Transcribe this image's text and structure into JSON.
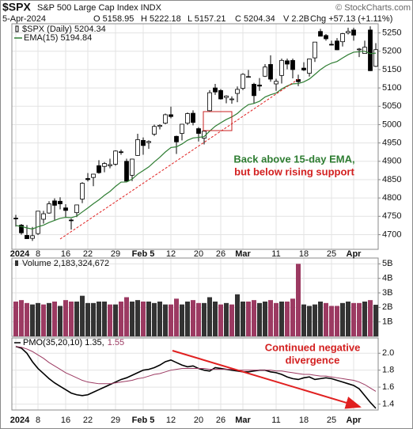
{
  "chart_data": [
    {
      "type": "candlestick",
      "title": "$SPX",
      "subtitle": "S&P 500 Large Cap Index INDX",
      "source": "© StockCharts.com",
      "date": "5-Apr-2024",
      "quote": [
        "O 5158.95",
        "H 5222.18",
        "L 5157.21",
        "C 5204.34",
        "V 2.2B",
        "Chg +57.13 (+1.11%)"
      ],
      "annotations": [
        {
          "text": "Back above 15-day EMA,",
          "color": "#2e7d32"
        },
        {
          "text": "but below rising support",
          "color": "#d32020"
        }
      ],
      "categories": [
        "2024",
        null,
        null,
        null,
        "8",
        null,
        null,
        null,
        null,
        "16",
        null,
        null,
        null,
        "22",
        null,
        null,
        null,
        null,
        "29",
        null,
        null,
        null,
        null,
        "Feb 5",
        null,
        null,
        null,
        null,
        "12",
        null,
        null,
        null,
        null,
        "20",
        null,
        null,
        null,
        "26",
        null,
        null,
        null,
        "Mar",
        null,
        null,
        null,
        null,
        null,
        "11",
        null,
        null,
        null,
        null,
        "18",
        null,
        null,
        null,
        null,
        "25",
        null,
        null,
        null,
        "Apr",
        null,
        null,
        null,
        null
      ],
      "ylim": [
        4660,
        5275
      ],
      "yticks": [
        4700,
        4750,
        4800,
        4850,
        4900,
        4950,
        5000,
        5050,
        5100,
        5150,
        5200,
        5250
      ],
      "grid": true,
      "series": [
        {
          "name": "$SPX (Daily) 5204.34",
          "color": "#000000",
          "open": [
            4745,
            4726,
            4698,
            4690,
            4703,
            4742,
            4759,
            4792,
            4791,
            4773,
            4740,
            4760,
            4797,
            4853,
            4856,
            4888,
            4886,
            4888,
            4892,
            4926,
            4900,
            4862,
            4916,
            4957,
            4951,
            4974,
            4995,
            5004,
            5027,
            4968,
            4976,
            5004,
            5031,
            4989,
            4963,
            5038,
            5100,
            5093,
            5074,
            5068,
            5085,
            5099,
            5131,
            5110,
            5108,
            5132,
            5164,
            5111,
            5134,
            5174,
            5175,
            5123,
            5154,
            5140,
            5182,
            5254,
            5243,
            5219,
            5228,
            5226,
            5250,
            5258,
            5204,
            5194,
            5258,
            5158.95
          ],
          "high": [
            4754,
            4729,
            4726,
            4721,
            4764,
            4765,
            4791,
            4799,
            4802,
            4783,
            4744,
            4782,
            4843,
            4868,
            4866,
            4903,
            4898,
            4907,
            4930,
            4932,
            4907,
            4907,
            4975,
            4965,
            4957,
            5000,
            5001,
            5030,
            5049,
            4970,
            5002,
            5033,
            5039,
            4993,
            4983,
            5094,
            5111,
            5097,
            5080,
            5077,
            5104,
            5140,
            5149,
            5114,
            5127,
            5165,
            5189,
            5125,
            5180,
            5180,
            5180,
            5136,
            5170,
            5180,
            5225,
            5261,
            5247,
            5229,
            5236,
            5250,
            5264,
            5264,
            5209,
            5229,
            5268,
            5222.18
          ],
          "low": [
            4722,
            4700,
            4688,
            4683,
            4699,
            4730,
            4757,
            4740,
            4769,
            4747,
            4714,
            4748,
            4786,
            4845,
            4832,
            4866,
            4870,
            4881,
            4888,
            4918,
            4845,
            4846,
            4915,
            4918,
            4934,
            4969,
            4987,
            5001,
            5017,
            4920,
            4957,
            4999,
            4998,
            4954,
            4946,
            5036,
            5081,
            5068,
            5058,
            5057,
            5061,
            5094,
            5128,
            5057,
            5092,
            5130,
            5117,
            5092,
            5112,
            5151,
            5126,
            5105,
            5146,
            5131,
            5171,
            5241,
            5229,
            5216,
            5203,
            5213,
            5246,
            5229,
            5184,
            5194,
            5146,
            5157.21
          ],
          "close": [
            4743,
            4705,
            4689,
            4697,
            4764,
            4757,
            4784,
            4780,
            4784,
            4766,
            4739,
            4781,
            4840,
            4850,
            4865,
            4869,
            4894,
            4891,
            4928,
            4925,
            4846,
            4906,
            4959,
            4943,
            4954,
            4995,
            4998,
            5027,
            5022,
            4953,
            5001,
            5030,
            5006,
            4976,
            4982,
            5087,
            5089,
            5070,
            5078,
            5070,
            5096,
            5137,
            5131,
            5079,
            5105,
            5157,
            5124,
            5118,
            5175,
            5165,
            5150,
            5117,
            5149,
            5179,
            5225,
            5241,
            5234,
            5218,
            5204,
            5248,
            5254,
            5244,
            5206,
            5211,
            5147,
            5204.34
          ]
        },
        {
          "name": "EMA(15) 5194.84",
          "color": "#2e7d32",
          "values": [
            4725,
            4722.5,
            4718.3,
            4715.4,
            4721.5,
            4725.9,
            4733.2,
            4739.0,
            4744.6,
            4747.3,
            4746.3,
            4750.6,
            4761.8,
            4772.8,
            4784.3,
            4794.9,
            4807.3,
            4817.8,
            4831.6,
            4843.3,
            4843.6,
            4851.4,
            4864.9,
            4874.7,
            4884.6,
            4898.4,
            4910.9,
            4925.4,
            4937.5,
            4939.4,
            4947.1,
            4957.5,
            4963.6,
            4965.2,
            4967.3,
            4982.3,
            4995.6,
            5004.9,
            5014.0,
            5021.0,
            5030.4,
            5043.7,
            5054.6,
            5057.7,
            5063.6,
            5075.3,
            5081.4,
            5086.0,
            5097.1,
            5105.6,
            5111.2,
            5111.9,
            5116.5,
            5124.3,
            5136.9,
            5149.9,
            5160.4,
            5167.6,
            5172.2,
            5181.7,
            5190.7,
            5197.4,
            5198.5,
            5200.1,
            5193.5,
            5194.84
          ]
        }
      ]
    },
    {
      "type": "bar",
      "ylim": [
        0,
        5.4
      ],
      "grid": true,
      "yticks": [
        {
          "value": 1,
          "label": "1B"
        },
        {
          "value": 2,
          "label": "2B"
        },
        {
          "value": 3,
          "label": "3B"
        },
        {
          "value": 4,
          "label": "4B"
        },
        {
          "value": 5,
          "label": "5B"
        }
      ],
      "series": [
        {
          "name": "Volume 2,183,324,672",
          "values": [
            2.4,
            2.5,
            2.3,
            2.2,
            2.3,
            2.2,
            2.3,
            2.4,
            2.1,
            2.5,
            2.4,
            2.4,
            2.8,
            2.3,
            2.3,
            2.4,
            2.4,
            2.2,
            2.2,
            2.4,
            2.7,
            2.4,
            2.5,
            2.4,
            2.4,
            2.3,
            2.4,
            2.2,
            2.2,
            2.6,
            2.2,
            2.4,
            2.5,
            2.3,
            2.3,
            2.7,
            2.4,
            2.2,
            2.3,
            2.2,
            2.9,
            2.4,
            2.4,
            2.5,
            2.3,
            2.4,
            2.5,
            2.3,
            2.4,
            2.4,
            2.6,
            5.0,
            2.2,
            2.1,
            2.2,
            2.4,
            2.3,
            2.1,
            2.1,
            2.3,
            2.4,
            2.3,
            2.3,
            2.4,
            2.5,
            2.18
          ],
          "colors": [
            "#9c3a62",
            "#9c3a62",
            "#9c3a62",
            "#333333",
            "#333333",
            "#9c3a62",
            "#333333",
            "#9c3a62",
            "#333333",
            "#9c3a62",
            "#9c3a62",
            "#333333",
            "#333333",
            "#333333",
            "#333333",
            "#333333",
            "#333333",
            "#9c3a62",
            "#333333",
            "#9c3a62",
            "#9c3a62",
            "#333333",
            "#333333",
            "#9c3a62",
            "#333333",
            "#333333",
            "#333333",
            "#333333",
            "#9c3a62",
            "#9c3a62",
            "#333333",
            "#333333",
            "#9c3a62",
            "#9c3a62",
            "#333333",
            "#333333",
            "#333333",
            "#9c3a62",
            "#333333",
            "#9c3a62",
            "#333333",
            "#333333",
            "#9c3a62",
            "#9c3a62",
            "#333333",
            "#333333",
            "#9c3a62",
            "#9c3a62",
            "#333333",
            "#9c3a62",
            "#9c3a62",
            "#9c3a62",
            "#333333",
            "#333333",
            "#333333",
            "#333333",
            "#9c3a62",
            "#9c3a62",
            "#9c3a62",
            "#333333",
            "#333333",
            "#9c3a62",
            "#9c3a62",
            "#333333",
            "#9c3a62",
            "#333333"
          ]
        }
      ]
    },
    {
      "type": "line",
      "ylim": [
        1.33,
        2.18
      ],
      "grid": true,
      "yticks": [
        1.4,
        1.6,
        1.8,
        {
          "value": 2.0,
          "label": "2.0"
        }
      ],
      "annotations": [
        {
          "text": "Continued negative",
          "color": "#d32020"
        },
        {
          "text": "divergence",
          "color": "#d32020"
        }
      ],
      "series": [
        {
          "name": "PMO(35,20,10) 1.35,",
          "color": "#000000",
          "values": [
            2.08,
            2.06,
            2.0,
            1.9,
            1.82,
            1.76,
            1.7,
            1.65,
            1.61,
            1.57,
            1.53,
            1.51,
            1.5,
            1.51,
            1.54,
            1.57,
            1.6,
            1.63,
            1.66,
            1.69,
            1.71,
            1.74,
            1.77,
            1.8,
            1.81,
            1.83,
            1.86,
            1.9,
            1.92,
            1.89,
            1.86,
            1.84,
            1.85,
            1.82,
            1.8,
            1.79,
            1.83,
            1.82,
            1.81,
            1.8,
            1.79,
            1.78,
            1.78,
            1.79,
            1.8,
            1.8,
            1.78,
            1.77,
            1.75,
            1.72,
            1.7,
            1.69,
            1.71,
            1.72,
            1.69,
            1.7,
            1.71,
            1.7,
            1.68,
            1.66,
            1.64,
            1.62,
            1.58,
            1.5,
            1.42,
            1.35
          ]
        },
        {
          "name": "1.55",
          "color": "#9c3a62",
          "values": [
            2.08,
            2.07,
            2.05,
            2.02,
            1.98,
            1.94,
            1.89,
            1.85,
            1.81,
            1.77,
            1.74,
            1.71,
            1.68,
            1.66,
            1.65,
            1.64,
            1.64,
            1.64,
            1.65,
            1.66,
            1.67,
            1.68,
            1.7,
            1.71,
            1.73,
            1.75,
            1.76,
            1.78,
            1.8,
            1.81,
            1.82,
            1.82,
            1.82,
            1.82,
            1.82,
            1.81,
            1.81,
            1.81,
            1.81,
            1.81,
            1.8,
            1.8,
            1.8,
            1.8,
            1.8,
            1.8,
            1.8,
            1.79,
            1.79,
            1.78,
            1.77,
            1.76,
            1.75,
            1.75,
            1.74,
            1.73,
            1.73,
            1.72,
            1.71,
            1.7,
            1.69,
            1.68,
            1.66,
            1.63,
            1.59,
            1.55
          ]
        }
      ]
    }
  ]
}
